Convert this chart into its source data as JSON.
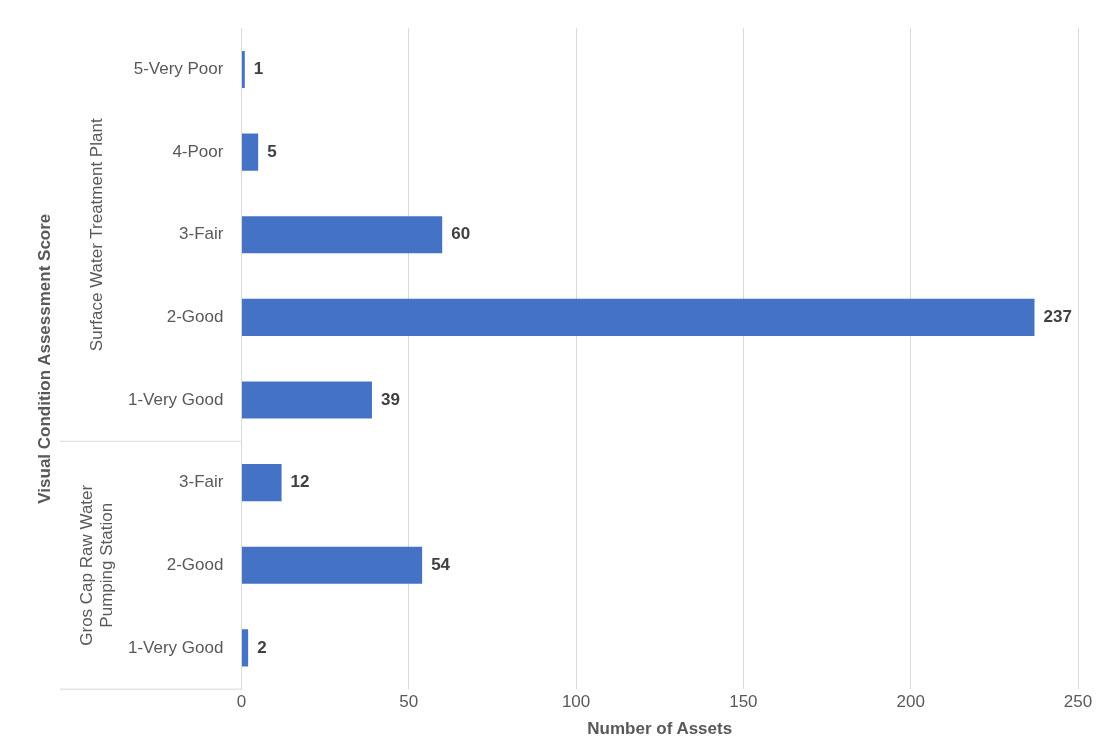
{
  "chart_data": {
    "type": "bar",
    "orientation": "horizontal",
    "ylabel": "Visual Condition Assessment Score",
    "xlabel": "Number of Assets",
    "categories": [
      "5-Very Poor",
      "4-Poor",
      "3-Fair",
      "2-Good",
      "1-Very Good",
      "3-Fair",
      "2-Good",
      "1-Very Good"
    ],
    "values": [
      1,
      5,
      60,
      237,
      39,
      12,
      54,
      2
    ],
    "color": "#4472c4",
    "xlim": [
      0,
      250
    ],
    "xticks": [
      0,
      50,
      100,
      150,
      200,
      250
    ],
    "grid": "x",
    "data_labels": true,
    "annotations": [
      "Surface Water Treatment Plant",
      "Gros Cap Raw Water Pumping Station"
    ]
  }
}
